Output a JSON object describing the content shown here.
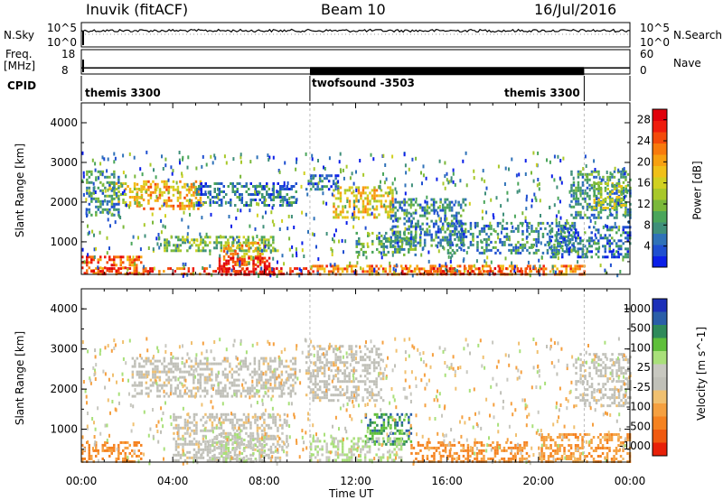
{
  "header": {
    "station": "Inuvik (fitACF)",
    "beam": "Beam 10",
    "date": "16/Jul/2016"
  },
  "status_panel": {
    "nsky_label": "N.Sky",
    "nsearch_label": "N.Search",
    "noise_ticks": [
      "10^5",
      "10^0"
    ],
    "freq_label": "Freq.",
    "freq_unit": "[MHz]",
    "freq_ticks": [
      "18",
      "8"
    ],
    "nave_label": "Nave",
    "nave_ticks": [
      "60",
      "0"
    ],
    "cpid_label": "CPID",
    "cpid_segments": [
      {
        "name": "themis 3300",
        "start_hour": 0,
        "end_hour": 10
      },
      {
        "name": "twofsound -3503",
        "start_hour": 10,
        "end_hour": 22
      },
      {
        "name": "themis 3300",
        "start_hour": 22,
        "end_hour": 24
      }
    ],
    "freq_mhz": [
      {
        "start_hour": 0,
        "end_hour": 10,
        "value": 10.5,
        "mode": "single"
      },
      {
        "start_hour": 10,
        "end_hour": 22,
        "value": 10.5,
        "mode": "alternating"
      },
      {
        "start_hour": 22,
        "end_hour": 24,
        "value": 10.5,
        "mode": "single"
      }
    ]
  },
  "chart_data": [
    {
      "type": "heatmap",
      "name": "power",
      "ylabel": "Slant Range [km]",
      "ylim": [
        180,
        4500
      ],
      "yticks": [
        "1000",
        "2000",
        "3000",
        "4000"
      ],
      "xlim": [
        0,
        24
      ],
      "colorbar_label": "Power [dB]",
      "colorbar_ticks": [
        "4",
        "8",
        "12",
        "16",
        "20",
        "24",
        "28"
      ],
      "colorbar_range": [
        0,
        30
      ],
      "colorbar_colors": [
        "#0b1fe8",
        "#1f4fd0",
        "#2f72b8",
        "#3f8f7a",
        "#4aa55a",
        "#7ab83a",
        "#a8c82a",
        "#d0d020",
        "#f0c018",
        "#f7a010",
        "#f87a0c",
        "#f44a0a",
        "#ef1c0c",
        "#e0000a"
      ],
      "echo_regions": [
        {
          "t0": 0.0,
          "t1": 2.6,
          "r0": 180,
          "r1": 650,
          "power": 24
        },
        {
          "t0": 0.4,
          "t1": 10.0,
          "r0": 180,
          "r1": 360,
          "power": 25
        },
        {
          "t0": 2.4,
          "t1": 5.2,
          "r0": 1800,
          "r1": 2550,
          "power": 20
        },
        {
          "t0": 1.2,
          "t1": 2.8,
          "r0": 1950,
          "r1": 2500,
          "power": 16
        },
        {
          "t0": 0.2,
          "t1": 1.6,
          "r0": 1700,
          "r1": 2800,
          "power": 8
        },
        {
          "t0": 3.6,
          "t1": 8.6,
          "r0": 750,
          "r1": 1150,
          "power": 12
        },
        {
          "t0": 6.2,
          "t1": 8.0,
          "r0": 420,
          "r1": 1000,
          "power": 20
        },
        {
          "t0": 6.0,
          "t1": 8.4,
          "r0": 180,
          "r1": 620,
          "power": 29
        },
        {
          "t0": 5.0,
          "t1": 9.4,
          "r0": 1900,
          "r1": 2500,
          "power": 6
        },
        {
          "t0": 9.8,
          "t1": 11.2,
          "r0": 2300,
          "r1": 2700,
          "power": 6
        },
        {
          "t0": 11.0,
          "t1": 13.6,
          "r0": 1600,
          "r1": 2400,
          "power": 18
        },
        {
          "t0": 12.0,
          "t1": 14.6,
          "r0": 700,
          "r1": 1250,
          "power": 10
        },
        {
          "t0": 10.0,
          "t1": 22.0,
          "r0": 180,
          "r1": 420,
          "power": 22
        },
        {
          "t0": 14.0,
          "t1": 20.0,
          "r0": 200,
          "r1": 360,
          "power": 26
        },
        {
          "t0": 13.5,
          "t1": 16.8,
          "r0": 900,
          "r1": 2100,
          "power": 7
        },
        {
          "t0": 16.0,
          "t1": 21.6,
          "r0": 700,
          "r1": 1500,
          "power": 7
        },
        {
          "t0": 21.4,
          "t1": 24.0,
          "r0": 1600,
          "r1": 2800,
          "power": 8
        },
        {
          "t0": 22.4,
          "t1": 23.8,
          "r0": 1850,
          "r1": 2500,
          "power": 14
        },
        {
          "t0": 20.5,
          "t1": 24.0,
          "r0": 600,
          "r1": 1400,
          "power": 6
        }
      ]
    },
    {
      "type": "heatmap",
      "name": "velocity",
      "ylabel": "Slant Range [km]",
      "ylim": [
        180,
        4500
      ],
      "yticks": [
        "1000",
        "2000",
        "3000",
        "4000"
      ],
      "xlim": [
        0,
        24
      ],
      "colorbar_label": "Velocity [m s^-1]",
      "colorbar_ticks": [
        "1000",
        "500",
        "100",
        "25",
        "-25",
        "-100",
        "-500",
        "-1000"
      ],
      "colorbar_colors": [
        "#1c2fb8",
        "#2a5ea8",
        "#2f8a5a",
        "#5fbf3a",
        "#a9e07a",
        "#c8c8c0",
        "#c0c0b8",
        "#f0c070",
        "#f5a040",
        "#f58220",
        "#f05a10",
        "#e82008"
      ],
      "echo_regions": [
        {
          "t0": 0.0,
          "t1": 2.6,
          "r0": 180,
          "r1": 700,
          "velocity": -300
        },
        {
          "t0": 2.2,
          "t1": 9.4,
          "r0": 1800,
          "r1": 2800,
          "velocity": 0
        },
        {
          "t0": 4.0,
          "t1": 9.0,
          "r0": 200,
          "r1": 1400,
          "velocity": 0
        },
        {
          "t0": 5.6,
          "t1": 8.0,
          "r0": 200,
          "r1": 900,
          "velocity": 80
        },
        {
          "t0": 9.8,
          "t1": 13.2,
          "r0": 1700,
          "r1": 3100,
          "velocity": 0
        },
        {
          "t0": 12.4,
          "t1": 14.4,
          "r0": 600,
          "r1": 1400,
          "velocity": 600
        },
        {
          "t0": 14.4,
          "t1": 19.6,
          "r0": 200,
          "r1": 700,
          "velocity": -300
        },
        {
          "t0": 10.0,
          "t1": 14.0,
          "r0": 200,
          "r1": 800,
          "velocity": 120
        },
        {
          "t0": 21.6,
          "t1": 24.0,
          "r0": 1600,
          "r1": 2900,
          "velocity": 0
        },
        {
          "t0": 20.0,
          "t1": 24.0,
          "r0": 200,
          "r1": 900,
          "velocity": -200
        }
      ]
    }
  ],
  "xaxis": {
    "label": "Time UT",
    "ticks": [
      "00:00",
      "04:00",
      "08:00",
      "12:00",
      "16:00",
      "20:00",
      "00:00"
    ]
  }
}
